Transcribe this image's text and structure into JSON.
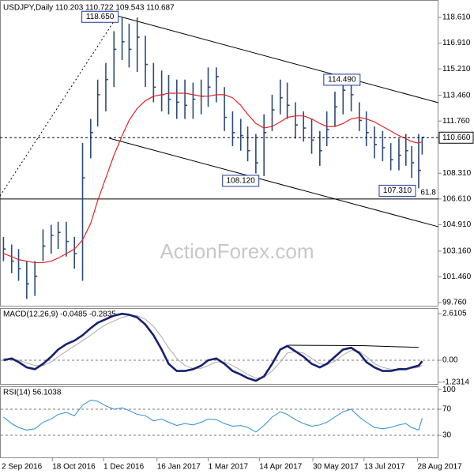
{
  "chart_data": [
    {
      "type": "ohlc",
      "title": "USDJPY,Daily 110.203 110.722 109.543 110.687",
      "watermark": "ActionForex.com",
      "color": "#2c4a78",
      "xlim": [
        "2016-09-03",
        "2017-09-15"
      ],
      "ylim": [
        99.5,
        119.76
      ],
      "yticks": [
        {
          "value": 118.61,
          "label": "118.610"
        },
        {
          "value": 116.91,
          "label": "116.910"
        },
        {
          "value": 115.21,
          "label": "115.210"
        },
        {
          "value": 113.46,
          "label": "113.460"
        },
        {
          "value": 111.76,
          "label": "111.760"
        },
        {
          "value": 108.31,
          "label": "108.310"
        },
        {
          "value": 106.61,
          "label": "106.610"
        },
        {
          "value": 104.91,
          "label": "104.910"
        },
        {
          "value": 103.16,
          "label": "103.160"
        },
        {
          "value": 101.46,
          "label": "101.460"
        },
        {
          "value": 99.76,
          "label": "99.760"
        }
      ],
      "current": {
        "value": 110.66,
        "label": "110.660"
      },
      "x": [
        "2016-09-06",
        "2016-09-13",
        "2016-09-19",
        "2016-09-26",
        "2016-10-03",
        "2016-10-10",
        "2016-10-17",
        "2016-10-23",
        "2016-10-30",
        "2016-11-06",
        "2016-11-13",
        "2016-11-20",
        "2016-11-26",
        "2016-12-03",
        "2016-12-10",
        "2016-12-17",
        "2016-12-23",
        "2016-12-30",
        "2017-01-06",
        "2017-01-13",
        "2017-01-20",
        "2017-01-26",
        "2017-02-02",
        "2017-02-09",
        "2017-02-16",
        "2017-02-23",
        "2017-03-01",
        "2017-03-08",
        "2017-03-15",
        "2017-03-22",
        "2017-03-29",
        "2017-04-04",
        "2017-04-11",
        "2017-04-18",
        "2017-04-25",
        "2017-05-02",
        "2017-05-08",
        "2017-05-15",
        "2017-05-22",
        "2017-05-29",
        "2017-06-05",
        "2017-06-11",
        "2017-06-18",
        "2017-06-25",
        "2017-07-02",
        "2017-07-09",
        "2017-07-15",
        "2017-07-22",
        "2017-07-29",
        "2017-08-05",
        "2017-08-12",
        "2017-08-18",
        "2017-08-23",
        "2017-08-29",
        "2017-09-01"
      ],
      "high": [
        104.1,
        103.6,
        103.3,
        102.5,
        102.5,
        104.6,
        104.9,
        105.1,
        105.1,
        104.1,
        110.3,
        111.9,
        114.5,
        115.6,
        117.7,
        118.65,
        118.2,
        118.6,
        117.4,
        115.6,
        115.1,
        114.8,
        114.5,
        114.5,
        114.3,
        114.5,
        115.3,
        115.3,
        114,
        112.4,
        111.9,
        111.4,
        110.9,
        112.2,
        113.5,
        114.5,
        114.3,
        113,
        112.4,
        111.9,
        111.1,
        112.4,
        113.7,
        114.5,
        114.8,
        113,
        112.4,
        111.4,
        111.1,
        110.3,
        110.6,
        110.9,
        110.1,
        110.9,
        110.722
      ],
      "low": [
        102.5,
        101.7,
        101.2,
        100,
        100.2,
        102.5,
        103,
        103.3,
        102.8,
        102,
        101.2,
        109.3,
        111.4,
        112.4,
        114,
        115.8,
        115.3,
        115,
        114,
        113,
        112.4,
        112.2,
        111.9,
        111.9,
        111.9,
        112.2,
        112.7,
        113,
        111.1,
        110.1,
        109.8,
        109.1,
        108.3,
        108.12,
        111.1,
        112.2,
        111.9,
        110.6,
        110.4,
        109.6,
        108.8,
        110.1,
        111.4,
        112.2,
        112.4,
        111.1,
        110.1,
        109.3,
        109.1,
        108.5,
        108.5,
        108.8,
        108,
        107.31,
        109.543
      ],
      "close": [
        103.3,
        102.5,
        102,
        101,
        101.5,
        103.5,
        104.2,
        104.4,
        103.8,
        103,
        108,
        111,
        113.5,
        114.5,
        116.5,
        117,
        116.5,
        117.3,
        115.5,
        114,
        113.5,
        113.2,
        113,
        112.8,
        113.2,
        113.4,
        114,
        114.7,
        112,
        111,
        110.8,
        109.8,
        109,
        111,
        112.5,
        113.3,
        112.8,
        111.5,
        111.3,
        110.5,
        109.8,
        111.2,
        112.7,
        113.8,
        113.5,
        111.8,
        111,
        110.2,
        110,
        109.2,
        109.5,
        109.8,
        109,
        108.5,
        110.687
      ],
      "overlay": {
        "color": "#e02424",
        "values": [
          103.0,
          102.8,
          102.6,
          102.5,
          102.4,
          102.4,
          102.5,
          102.7,
          103.0,
          103.3,
          103.9,
          105,
          106.5,
          108,
          109.5,
          110.8,
          111.8,
          112.6,
          113.1,
          113.4,
          113.5,
          113.6,
          113.6,
          113.6,
          113.5,
          113.4,
          113.4,
          113.5,
          113.5,
          113.3,
          112.8,
          112.2,
          111.6,
          111.3,
          111.4,
          111.7,
          112,
          112.1,
          112.1,
          111.9,
          111.6,
          111.4,
          111.4,
          111.6,
          111.9,
          112,
          111.9,
          111.7,
          111.4,
          111.1,
          110.8,
          110.6,
          110.4,
          110.3,
          110.4
        ]
      },
      "hlines": [
        106.61
      ],
      "trendlines": [
        {
          "style": "solid",
          "x": [
            "2016-12-13",
            "2017-09-15"
          ],
          "y": [
            118.71,
            112.97
          ]
        },
        {
          "style": "solid",
          "x": [
            "2016-12-06",
            "2017-09-15"
          ],
          "y": [
            110.62,
            104.77
          ]
        },
        {
          "style": "dotted",
          "x": [
            "2016-09-03",
            "2016-12-13"
          ],
          "y": [
            106.81,
            118.71
          ]
        }
      ],
      "annotations": [
        {
          "label": "118.650",
          "x": "2016-12-15",
          "y": 118.65
        },
        {
          "label": "114.490",
          "x": "2017-07-11",
          "y": 114.49
        },
        {
          "label": "108.120",
          "x": "2017-04-17",
          "y": 108.12
        },
        {
          "label": "107.310",
          "x": "2017-08-29",
          "y": 107.31
        },
        {
          "label": "61.8",
          "x": "2017-09-01",
          "y": 106.61
        }
      ]
    },
    {
      "type": "line",
      "title": "MACD(12,26,9) -0.0485 -0.2835",
      "xlim": [
        "2016-09-03",
        "2017-09-15"
      ],
      "ylim": [
        -1.37,
        2.92
      ],
      "yticks": [
        2.6105,
        {
          "value": 0,
          "label": "0.00"
        },
        -1.2314
      ],
      "levels": [
        0
      ],
      "x": [
        "2016-09-06",
        "2016-09-13",
        "2016-09-19",
        "2016-09-26",
        "2016-10-03",
        "2016-10-10",
        "2016-10-17",
        "2016-10-23",
        "2016-10-30",
        "2016-11-06",
        "2016-11-13",
        "2016-11-20",
        "2016-11-26",
        "2016-12-03",
        "2016-12-10",
        "2016-12-17",
        "2016-12-23",
        "2016-12-30",
        "2017-01-06",
        "2017-01-13",
        "2017-01-20",
        "2017-01-26",
        "2017-02-02",
        "2017-02-09",
        "2017-02-16",
        "2017-02-23",
        "2017-03-01",
        "2017-03-08",
        "2017-03-15",
        "2017-03-22",
        "2017-03-29",
        "2017-04-04",
        "2017-04-11",
        "2017-04-18",
        "2017-04-25",
        "2017-05-02",
        "2017-05-08",
        "2017-05-15",
        "2017-05-22",
        "2017-05-29",
        "2017-06-05",
        "2017-06-11",
        "2017-06-18",
        "2017-06-25",
        "2017-07-02",
        "2017-07-09",
        "2017-07-15",
        "2017-07-22",
        "2017-07-29",
        "2017-08-05",
        "2017-08-12",
        "2017-08-18",
        "2017-08-23",
        "2017-08-29",
        "2017-09-01"
      ],
      "lines": [
        {
          "color": "#aaaaaa",
          "width": 1,
          "values": [
            0.1,
            0.05,
            0.0,
            -0.15,
            -0.3,
            -0.3,
            -0.1,
            0.2,
            0.5,
            0.8,
            1.1,
            1.4,
            1.7,
            2.0,
            2.2,
            2.4,
            2.5,
            2.5,
            2.3,
            1.9,
            1.3,
            0.7,
            0.1,
            -0.3,
            -0.45,
            -0.45,
            -0.3,
            -0.1,
            -0.1,
            -0.3,
            -0.55,
            -0.8,
            -1.0,
            -0.95,
            -0.6,
            -0.1,
            0.4,
            0.5,
            0.4,
            0.1,
            -0.2,
            -0.25,
            -0.05,
            0.3,
            0.55,
            0.5,
            0.2,
            -0.2,
            -0.4,
            -0.5,
            -0.5,
            -0.5,
            -0.45,
            -0.4,
            -0.2835
          ]
        },
        {
          "color": "#16206e",
          "width": 2.6,
          "values": [
            0.0,
            0.1,
            -0.1,
            -0.4,
            -0.5,
            -0.2,
            0.2,
            0.6,
            0.9,
            1.1,
            1.4,
            1.8,
            2.1,
            2.3,
            2.5,
            2.6,
            2.55,
            2.4,
            2.0,
            1.4,
            0.6,
            -0.2,
            -0.6,
            -0.6,
            -0.5,
            -0.3,
            0.0,
            0.1,
            -0.2,
            -0.6,
            -0.8,
            -1.0,
            -1.15,
            -0.9,
            -0.2,
            0.6,
            0.8,
            0.5,
            0.2,
            -0.2,
            -0.4,
            -0.2,
            0.2,
            0.6,
            0.7,
            0.4,
            -0.1,
            -0.4,
            -0.6,
            -0.6,
            -0.5,
            -0.5,
            -0.4,
            -0.3,
            -0.0485
          ]
        }
      ],
      "trendlines": [
        {
          "style": "solid",
          "x": [
            "2017-05-09",
            "2017-07-11",
            "2017-08-29"
          ],
          "y": [
            0.84,
            0.82,
            0.72
          ]
        }
      ]
    },
    {
      "type": "line",
      "title": "RSI(14) 56.1038",
      "xlim": [
        "2016-09-03",
        "2017-09-15"
      ],
      "ylim": [
        -5,
        105
      ],
      "yticks": [
        100,
        70,
        30
      ],
      "levels": [
        70,
        30
      ],
      "xticks": [
        {
          "value": "2016-09-02",
          "label": "2 Sep 2016"
        },
        {
          "value": "2016-10-18",
          "label": "18 Oct 2016"
        },
        {
          "value": "2016-12-01",
          "label": "1 Dec 2016"
        },
        {
          "value": "2017-01-16",
          "label": "16 Jan 2017"
        },
        {
          "value": "2017-03-01",
          "label": "1 Mar 2017"
        },
        {
          "value": "2017-04-14",
          "label": "14 Apr 2017"
        },
        {
          "value": "2017-05-30",
          "label": "30 May 2017"
        },
        {
          "value": "2017-07-13",
          "label": "13 Jul 2017"
        },
        {
          "value": "2017-08-28",
          "label": "28 Aug 2017"
        }
      ],
      "x": [
        "2016-09-06",
        "2016-09-13",
        "2016-09-19",
        "2016-09-26",
        "2016-10-03",
        "2016-10-10",
        "2016-10-17",
        "2016-10-23",
        "2016-10-30",
        "2016-11-06",
        "2016-11-13",
        "2016-11-20",
        "2016-11-26",
        "2016-12-03",
        "2016-12-10",
        "2016-12-17",
        "2016-12-23",
        "2016-12-30",
        "2017-01-06",
        "2017-01-13",
        "2017-01-20",
        "2017-01-26",
        "2017-02-02",
        "2017-02-09",
        "2017-02-16",
        "2017-02-23",
        "2017-03-01",
        "2017-03-08",
        "2017-03-15",
        "2017-03-22",
        "2017-03-29",
        "2017-04-04",
        "2017-04-11",
        "2017-04-18",
        "2017-04-25",
        "2017-05-02",
        "2017-05-08",
        "2017-05-15",
        "2017-05-22",
        "2017-05-29",
        "2017-06-05",
        "2017-06-11",
        "2017-06-18",
        "2017-06-25",
        "2017-07-02",
        "2017-07-09",
        "2017-07-15",
        "2017-07-22",
        "2017-07-29",
        "2017-08-05",
        "2017-08-12",
        "2017-08-18",
        "2017-08-23",
        "2017-08-29",
        "2017-09-01"
      ],
      "lines": [
        {
          "color": "#2b8fd6",
          "width": 1,
          "values": [
            58,
            48,
            42,
            38,
            40,
            50,
            55,
            62,
            65,
            60,
            76,
            84,
            82,
            75,
            70,
            72,
            68,
            62,
            60,
            52,
            55,
            50,
            45,
            48,
            46,
            50,
            55,
            54,
            48,
            44,
            45,
            42,
            35,
            45,
            58,
            66,
            62,
            54,
            48,
            44,
            46,
            50,
            58,
            66,
            70,
            58,
            50,
            42,
            40,
            42,
            46,
            48,
            42,
            38,
            56.1038
          ]
        }
      ]
    }
  ]
}
